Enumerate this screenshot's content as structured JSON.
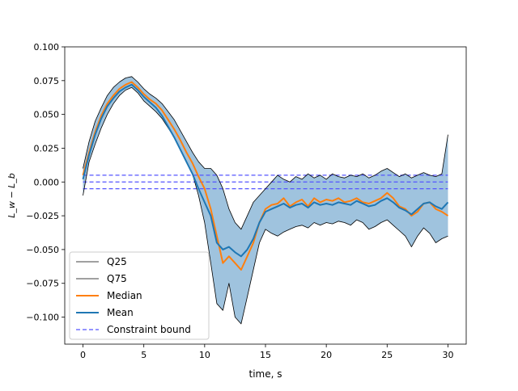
{
  "chart_data": {
    "type": "line",
    "title": "",
    "xlabel": "time, s",
    "ylabel": "L_w − L_b",
    "xlim": [
      -1.5,
      31.5
    ],
    "ylim": [
      -0.12,
      0.1
    ],
    "xticks": [
      0,
      5,
      10,
      15,
      20,
      25,
      30
    ],
    "xtick_labels": [
      "0",
      "5",
      "10",
      "15",
      "20",
      "25",
      "30"
    ],
    "yticks": [
      -0.1,
      -0.075,
      -0.05,
      -0.025,
      0.0,
      0.025,
      0.05,
      0.075,
      0.1
    ],
    "ytick_labels": [
      "−0.100",
      "−0.075",
      "−0.050",
      "−0.025",
      "0.000",
      "0.025",
      "0.050",
      "0.075",
      "0.100"
    ],
    "grid": false,
    "legend_position": "lower-left",
    "legend": [
      {
        "label": "Q25",
        "color": "#000000",
        "style": "solid-thin"
      },
      {
        "label": "Q75",
        "color": "#000000",
        "style": "solid-thin"
      },
      {
        "label": "Median",
        "color": "#ff7f0e",
        "style": "solid"
      },
      {
        "label": "Mean",
        "color": "#1f77b4",
        "style": "solid"
      },
      {
        "label": "Constraint bound",
        "color": "#5555ff",
        "style": "dashed"
      }
    ],
    "fill_color": "#9fc3de",
    "x": [
      0,
      0.5,
      1,
      1.5,
      2,
      2.5,
      3,
      3.5,
      4,
      4.5,
      5,
      5.5,
      6,
      6.5,
      7,
      7.5,
      8,
      8.5,
      9,
      9.5,
      10,
      10.5,
      11,
      11.5,
      12,
      12.5,
      13,
      13.5,
      14,
      14.5,
      15,
      15.5,
      16,
      16.5,
      17,
      17.5,
      18,
      18.5,
      19,
      19.5,
      20,
      20.5,
      21,
      21.5,
      22,
      22.5,
      23,
      23.5,
      24,
      24.5,
      25,
      25.5,
      26,
      26.5,
      27,
      27.5,
      28,
      28.5,
      29,
      29.5,
      30
    ],
    "series": [
      {
        "name": "Q25",
        "color": "#000000",
        "values": [
          -0.01,
          0.015,
          0.028,
          0.04,
          0.05,
          0.058,
          0.064,
          0.068,
          0.07,
          0.066,
          0.06,
          0.056,
          0.052,
          0.047,
          0.04,
          0.033,
          0.024,
          0.015,
          0.006,
          -0.01,
          -0.03,
          -0.06,
          -0.09,
          -0.095,
          -0.075,
          -0.1,
          -0.105,
          -0.085,
          -0.065,
          -0.045,
          -0.035,
          -0.038,
          -0.04,
          -0.037,
          -0.035,
          -0.033,
          -0.032,
          -0.034,
          -0.03,
          -0.032,
          -0.03,
          -0.031,
          -0.029,
          -0.03,
          -0.032,
          -0.028,
          -0.03,
          -0.035,
          -0.033,
          -0.03,
          -0.028,
          -0.032,
          -0.036,
          -0.04,
          -0.048,
          -0.04,
          -0.034,
          -0.038,
          -0.045,
          -0.042,
          -0.04
        ]
      },
      {
        "name": "Q75",
        "color": "#000000",
        "values": [
          0.01,
          0.03,
          0.045,
          0.055,
          0.064,
          0.07,
          0.074,
          0.077,
          0.078,
          0.074,
          0.069,
          0.065,
          0.062,
          0.058,
          0.052,
          0.046,
          0.038,
          0.03,
          0.022,
          0.015,
          0.01,
          0.01,
          0.005,
          -0.005,
          -0.02,
          -0.03,
          -0.035,
          -0.025,
          -0.015,
          -0.01,
          -0.005,
          0.0,
          0.005,
          0.002,
          0.0,
          0.004,
          0.002,
          0.006,
          0.003,
          0.005,
          0.002,
          0.006,
          0.004,
          0.003,
          0.005,
          0.004,
          0.006,
          0.003,
          0.005,
          0.008,
          0.01,
          0.007,
          0.004,
          0.006,
          0.003,
          0.005,
          0.007,
          0.005,
          0.004,
          0.006,
          0.035
        ]
      },
      {
        "name": "Median",
        "color": "#ff7f0e",
        "values": [
          0.005,
          0.022,
          0.037,
          0.049,
          0.058,
          0.064,
          0.069,
          0.072,
          0.074,
          0.07,
          0.065,
          0.061,
          0.058,
          0.053,
          0.046,
          0.039,
          0.031,
          0.022,
          0.014,
          0.004,
          -0.005,
          -0.02,
          -0.04,
          -0.06,
          -0.055,
          -0.06,
          -0.065,
          -0.055,
          -0.045,
          -0.03,
          -0.02,
          -0.017,
          -0.016,
          -0.012,
          -0.018,
          -0.015,
          -0.013,
          -0.018,
          -0.012,
          -0.015,
          -0.013,
          -0.014,
          -0.012,
          -0.015,
          -0.014,
          -0.012,
          -0.015,
          -0.016,
          -0.014,
          -0.012,
          -0.008,
          -0.012,
          -0.018,
          -0.02,
          -0.025,
          -0.022,
          -0.016,
          -0.015,
          -0.02,
          -0.022,
          -0.025
        ]
      },
      {
        "name": "Mean",
        "color": "#1f77b4",
        "values": [
          0.002,
          0.02,
          0.035,
          0.047,
          0.056,
          0.062,
          0.067,
          0.07,
          0.072,
          0.068,
          0.063,
          0.059,
          0.055,
          0.049,
          0.041,
          0.033,
          0.024,
          0.015,
          0.006,
          -0.005,
          -0.015,
          -0.025,
          -0.045,
          -0.05,
          -0.048,
          -0.052,
          -0.055,
          -0.05,
          -0.042,
          -0.03,
          -0.022,
          -0.02,
          -0.018,
          -0.016,
          -0.019,
          -0.017,
          -0.016,
          -0.019,
          -0.015,
          -0.017,
          -0.016,
          -0.017,
          -0.015,
          -0.016,
          -0.017,
          -0.014,
          -0.016,
          -0.018,
          -0.017,
          -0.014,
          -0.012,
          -0.015,
          -0.019,
          -0.021,
          -0.024,
          -0.02,
          -0.016,
          -0.015,
          -0.018,
          -0.02,
          -0.015
        ]
      }
    ],
    "constraint_bounds": [
      0.005,
      0.0,
      -0.005
    ],
    "constraint_color": "#5555ff"
  }
}
